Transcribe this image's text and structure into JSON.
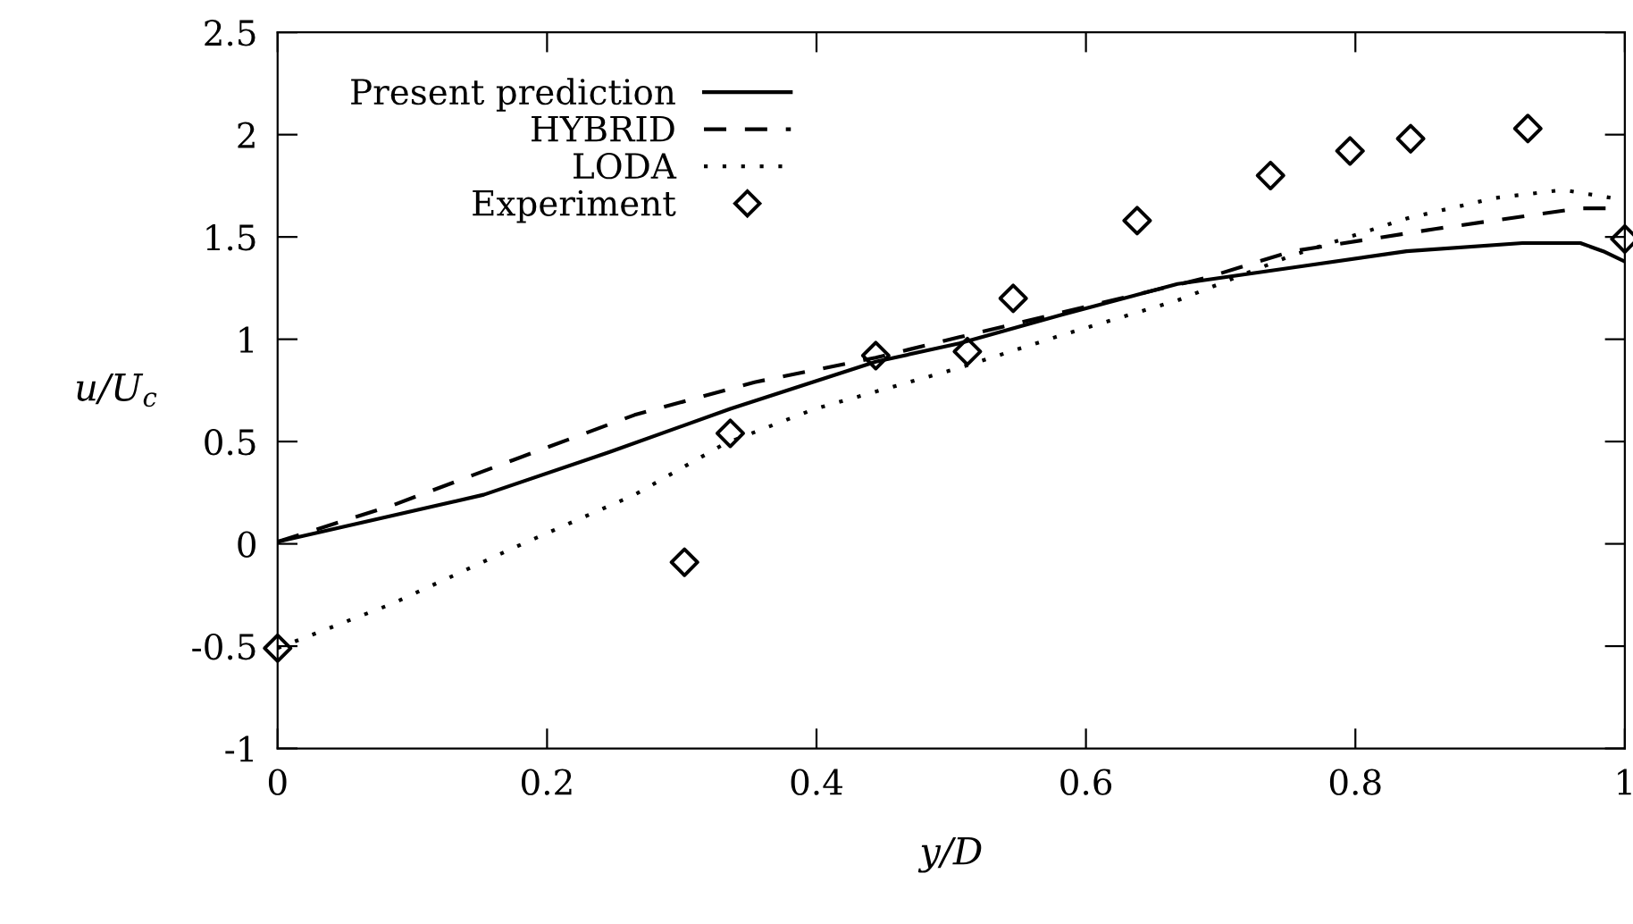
{
  "chart_data": {
    "type": "line",
    "xlabel": "y/D",
    "ylabel": "u/U$_{c}$",
    "xlim": [
      0,
      1
    ],
    "ylim": [
      -1,
      2.5
    ],
    "xticks": [
      0,
      0.2,
      0.4,
      0.6,
      0.8,
      1
    ],
    "yticks": [
      -1,
      -0.5,
      0,
      0.5,
      1,
      1.5,
      2,
      2.5
    ],
    "grid": false,
    "legend": "top left",
    "series": [
      {
        "name": "Present prediction",
        "line_style": "solid",
        "color": "#000000",
        "x": [
          0,
          0.153,
          0.247,
          0.336,
          0.444,
          0.506,
          0.582,
          0.668,
          0.753,
          0.838,
          0.924,
          0.967,
          0.984,
          1.0
        ],
        "values": [
          0.01,
          0.24,
          0.45,
          0.66,
          0.89,
          0.98,
          1.12,
          1.27,
          1.35,
          1.43,
          1.47,
          1.47,
          1.43,
          1.38
        ]
      },
      {
        "name": "HYBRID",
        "line_style": "dashed",
        "color": "#000000",
        "x": [
          0,
          0.086,
          0.175,
          0.265,
          0.354,
          0.444,
          0.506,
          0.689,
          0.753,
          0.86,
          0.924,
          0.967,
          1.0
        ],
        "values": [
          0.01,
          0.19,
          0.41,
          0.63,
          0.79,
          0.91,
          1.01,
          1.3,
          1.43,
          1.54,
          1.6,
          1.64,
          1.64
        ]
      },
      {
        "name": "LODA",
        "line_style": "dotted",
        "color": "#000000",
        "x": [
          0,
          0.086,
          0.175,
          0.265,
          0.332,
          0.399,
          0.506,
          0.582,
          0.668,
          0.753,
          0.838,
          0.903,
          0.954,
          1.0
        ],
        "values": [
          -0.51,
          -0.29,
          -0.02,
          0.24,
          0.49,
          0.66,
          0.86,
          1.02,
          1.19,
          1.41,
          1.59,
          1.69,
          1.73,
          1.68
        ]
      },
      {
        "name": "Experiment",
        "type": "scatter",
        "marker": "diamond",
        "color": "#000000",
        "x": [
          0,
          0.302,
          0.336,
          0.444,
          0.512,
          0.546,
          0.638,
          0.737,
          0.796,
          0.841,
          0.928,
          1.0
        ],
        "values": [
          -0.51,
          -0.09,
          0.54,
          0.92,
          0.94,
          1.2,
          1.58,
          1.8,
          1.92,
          1.98,
          2.03,
          1.49
        ]
      }
    ]
  }
}
